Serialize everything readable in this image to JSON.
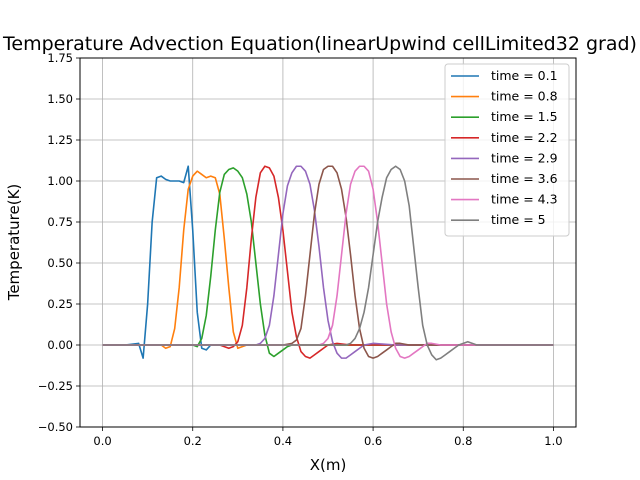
{
  "chart_data": {
    "type": "line",
    "title": "Temperature Advection Equation(linearUpwind cellLimited32 grad)",
    "xlabel": "X(m)",
    "ylabel": "Temperature(K)",
    "xlim": [
      -0.05,
      1.05
    ],
    "ylim": [
      -0.5,
      1.75
    ],
    "xticks": [
      0.0,
      0.2,
      0.4,
      0.6,
      0.8,
      1.0
    ],
    "xtick_labels": [
      "0.0",
      "0.2",
      "0.4",
      "0.6",
      "0.8",
      "1.0"
    ],
    "yticks": [
      -0.5,
      -0.25,
      0.0,
      0.25,
      0.5,
      0.75,
      1.0,
      1.25,
      1.5,
      1.75
    ],
    "ytick_labels": [
      "−0.50",
      "−0.25",
      "0.00",
      "0.25",
      "0.50",
      "0.75",
      "1.00",
      "1.25",
      "1.50",
      "1.75"
    ],
    "grid": true,
    "legend_position": "top-right",
    "series": [
      {
        "name": "time = 0.1",
        "color": "#1f77b4",
        "x": [
          0.0,
          0.05,
          0.08,
          0.09,
          0.1,
          0.11,
          0.12,
          0.13,
          0.14,
          0.15,
          0.16,
          0.17,
          0.18,
          0.19,
          0.2,
          0.21,
          0.22,
          0.23,
          0.24,
          0.25,
          0.3,
          0.4,
          0.5,
          0.6,
          0.7,
          0.8,
          0.9,
          1.0
        ],
        "y": [
          0.0,
          0.0,
          0.01,
          -0.08,
          0.25,
          0.75,
          1.02,
          1.03,
          1.01,
          1.0,
          1.0,
          1.0,
          0.99,
          1.09,
          0.7,
          0.2,
          -0.02,
          -0.03,
          0.0,
          0.0,
          0.0,
          0.0,
          0.0,
          0.0,
          0.0,
          0.0,
          0.0,
          0.0
        ]
      },
      {
        "name": "time = 0.8",
        "color": "#ff7f0e",
        "x": [
          0.0,
          0.1,
          0.13,
          0.14,
          0.15,
          0.16,
          0.17,
          0.18,
          0.19,
          0.2,
          0.21,
          0.22,
          0.23,
          0.24,
          0.25,
          0.26,
          0.27,
          0.28,
          0.29,
          0.3,
          0.31,
          0.32,
          0.35,
          0.4,
          0.5,
          0.6,
          0.7,
          0.8,
          0.9,
          1.0
        ],
        "y": [
          0.0,
          0.0,
          0.0,
          -0.02,
          -0.01,
          0.1,
          0.35,
          0.7,
          0.95,
          1.03,
          1.06,
          1.04,
          1.02,
          1.03,
          1.02,
          0.92,
          0.65,
          0.35,
          0.08,
          -0.02,
          -0.01,
          0.0,
          0.0,
          0.0,
          0.0,
          0.0,
          0.0,
          0.0,
          0.0,
          0.0
        ]
      },
      {
        "name": "time = 1.5",
        "color": "#2ca02c",
        "x": [
          0.0,
          0.15,
          0.2,
          0.21,
          0.22,
          0.23,
          0.24,
          0.25,
          0.26,
          0.27,
          0.28,
          0.29,
          0.3,
          0.31,
          0.32,
          0.33,
          0.34,
          0.35,
          0.36,
          0.37,
          0.38,
          0.39,
          0.4,
          0.41,
          0.42,
          0.45,
          0.5,
          0.6,
          0.7,
          0.8,
          0.9,
          1.0
        ],
        "y": [
          0.0,
          0.0,
          0.0,
          -0.01,
          0.04,
          0.18,
          0.42,
          0.7,
          0.93,
          1.04,
          1.07,
          1.08,
          1.06,
          1.02,
          0.92,
          0.75,
          0.5,
          0.25,
          0.06,
          -0.05,
          -0.07,
          -0.05,
          -0.03,
          -0.01,
          0.0,
          0.0,
          0.0,
          0.0,
          0.0,
          0.0,
          0.0,
          0.0
        ]
      },
      {
        "name": "time = 2.2",
        "color": "#d62728",
        "x": [
          0.0,
          0.2,
          0.26,
          0.27,
          0.28,
          0.29,
          0.3,
          0.31,
          0.32,
          0.33,
          0.34,
          0.35,
          0.36,
          0.37,
          0.38,
          0.39,
          0.4,
          0.41,
          0.42,
          0.43,
          0.44,
          0.45,
          0.46,
          0.47,
          0.48,
          0.49,
          0.5,
          0.52,
          0.55,
          0.6,
          0.7,
          0.8,
          0.9,
          1.0
        ],
        "y": [
          0.0,
          0.0,
          0.0,
          -0.01,
          -0.02,
          -0.01,
          0.02,
          0.12,
          0.35,
          0.65,
          0.9,
          1.05,
          1.09,
          1.08,
          1.03,
          0.9,
          0.7,
          0.45,
          0.2,
          0.05,
          -0.04,
          -0.07,
          -0.08,
          -0.06,
          -0.04,
          -0.02,
          0.0,
          0.01,
          0.0,
          0.0,
          0.0,
          0.0,
          0.0,
          0.0
        ]
      },
      {
        "name": "time = 2.9",
        "color": "#9467bd",
        "x": [
          0.0,
          0.3,
          0.34,
          0.35,
          0.36,
          0.37,
          0.38,
          0.39,
          0.4,
          0.41,
          0.42,
          0.43,
          0.44,
          0.45,
          0.46,
          0.47,
          0.48,
          0.49,
          0.5,
          0.51,
          0.52,
          0.53,
          0.54,
          0.55,
          0.56,
          0.57,
          0.58,
          0.6,
          0.65,
          0.7,
          0.8,
          0.9,
          1.0
        ],
        "y": [
          0.0,
          0.0,
          0.0,
          0.01,
          0.04,
          0.12,
          0.3,
          0.55,
          0.8,
          0.97,
          1.05,
          1.09,
          1.09,
          1.06,
          0.98,
          0.82,
          0.6,
          0.35,
          0.15,
          0.02,
          -0.05,
          -0.08,
          -0.08,
          -0.06,
          -0.04,
          -0.02,
          0.0,
          0.01,
          0.0,
          0.0,
          0.0,
          0.0,
          0.0
        ]
      },
      {
        "name": "time = 3.6",
        "color": "#8c564b",
        "x": [
          0.0,
          0.4,
          0.42,
          0.43,
          0.44,
          0.45,
          0.46,
          0.47,
          0.48,
          0.49,
          0.5,
          0.51,
          0.52,
          0.53,
          0.54,
          0.55,
          0.56,
          0.57,
          0.58,
          0.59,
          0.6,
          0.61,
          0.62,
          0.63,
          0.64,
          0.65,
          0.66,
          0.68,
          0.7,
          0.75,
          0.8,
          0.9,
          1.0
        ],
        "y": [
          0.0,
          0.0,
          0.01,
          0.03,
          0.1,
          0.3,
          0.55,
          0.8,
          0.98,
          1.07,
          1.09,
          1.09,
          1.05,
          0.95,
          0.78,
          0.55,
          0.3,
          0.1,
          -0.02,
          -0.07,
          -0.08,
          -0.07,
          -0.05,
          -0.03,
          -0.01,
          0.01,
          0.01,
          0.0,
          0.0,
          0.0,
          0.0,
          0.0,
          0.0
        ]
      },
      {
        "name": "time = 4.3",
        "color": "#e377c2",
        "x": [
          0.0,
          0.45,
          0.48,
          0.49,
          0.5,
          0.51,
          0.52,
          0.53,
          0.54,
          0.55,
          0.56,
          0.57,
          0.58,
          0.59,
          0.6,
          0.61,
          0.62,
          0.63,
          0.64,
          0.65,
          0.66,
          0.67,
          0.68,
          0.69,
          0.7,
          0.71,
          0.72,
          0.73,
          0.75,
          0.8,
          0.9,
          1.0
        ],
        "y": [
          0.0,
          0.0,
          0.0,
          0.01,
          0.04,
          0.12,
          0.3,
          0.55,
          0.8,
          0.98,
          1.06,
          1.09,
          1.09,
          1.06,
          0.95,
          0.75,
          0.5,
          0.25,
          0.08,
          -0.02,
          -0.07,
          -0.08,
          -0.07,
          -0.05,
          -0.03,
          -0.01,
          0.01,
          0.01,
          0.0,
          0.0,
          0.0,
          0.0
        ]
      },
      {
        "name": "time = 5",
        "color": "#7f7f7f",
        "x": [
          0.0,
          0.5,
          0.54,
          0.55,
          0.56,
          0.57,
          0.58,
          0.59,
          0.6,
          0.61,
          0.62,
          0.63,
          0.64,
          0.65,
          0.66,
          0.67,
          0.68,
          0.69,
          0.7,
          0.71,
          0.72,
          0.73,
          0.74,
          0.75,
          0.76,
          0.77,
          0.78,
          0.79,
          0.8,
          0.81,
          0.82,
          0.83,
          0.85,
          0.9,
          1.0
        ],
        "y": [
          0.0,
          0.0,
          0.0,
          0.01,
          0.04,
          0.1,
          0.2,
          0.35,
          0.55,
          0.75,
          0.9,
          1.02,
          1.07,
          1.09,
          1.07,
          1.0,
          0.85,
          0.6,
          0.35,
          0.12,
          0.0,
          -0.06,
          -0.09,
          -0.08,
          -0.06,
          -0.04,
          -0.02,
          0.0,
          0.01,
          0.02,
          0.01,
          0.0,
          0.0,
          0.0,
          0.0
        ]
      }
    ]
  }
}
